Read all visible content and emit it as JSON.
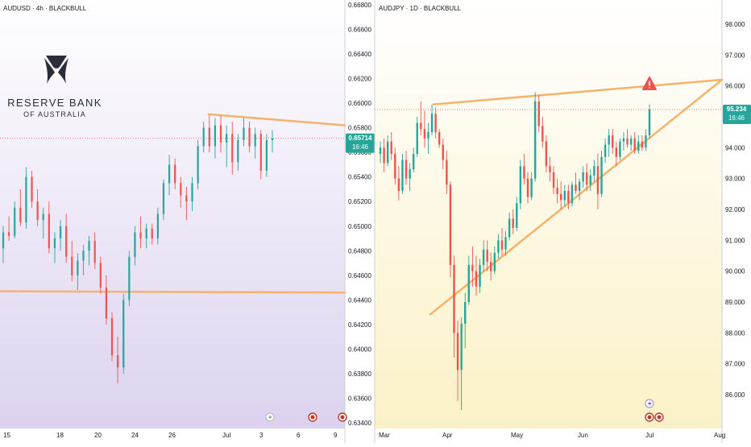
{
  "colors": {
    "up": "#26a69a",
    "down": "#ef5350",
    "trendline": "#f6b26b",
    "price_label_bg": "#26a69a",
    "left_bg_top": "#ffffff",
    "left_bg_bottom": "#dcd2ef",
    "right_bg_top": "#ffffff",
    "right_bg_bottom": "#fbf1c7",
    "alert": "#ef5350"
  },
  "logo": {
    "name": "RESERVE BANK",
    "subname": "OF AUSTRALIA"
  },
  "chart_data": [
    {
      "type": "candlestick",
      "symbol_label": "AUDUSD · 4h · BLACKBULL",
      "ylim": [
        0.633,
        0.668
      ],
      "y_ticks": [
        "0.66800",
        "0.66600",
        "0.66400",
        "0.66200",
        "0.66000",
        "0.65800",
        "0.65600",
        "0.65400",
        "0.65200",
        "0.65000",
        "0.64800",
        "0.64600",
        "0.64400",
        "0.64200",
        "0.64000",
        "0.63800",
        "0.63600",
        "0.63400"
      ],
      "x_ticks": [
        "15",
        "18",
        "20",
        "24",
        "26",
        "Jul",
        "3",
        "6",
        "9"
      ],
      "last_price": {
        "value": "0.65714",
        "countdown": "16:46",
        "numeric": 0.65714
      },
      "candles": [
        {
          "o": 0.6482,
          "h": 0.65,
          "l": 0.647,
          "c": 0.6495
        },
        {
          "o": 0.6495,
          "h": 0.6508,
          "l": 0.6488,
          "c": 0.6492
        },
        {
          "o": 0.6492,
          "h": 0.652,
          "l": 0.649,
          "c": 0.6515
        },
        {
          "o": 0.6515,
          "h": 0.653,
          "l": 0.65,
          "c": 0.6503
        },
        {
          "o": 0.6503,
          "h": 0.6548,
          "l": 0.6498,
          "c": 0.654
        },
        {
          "o": 0.654,
          "h": 0.6545,
          "l": 0.6515,
          "c": 0.652
        },
        {
          "o": 0.652,
          "h": 0.653,
          "l": 0.65,
          "c": 0.6505
        },
        {
          "o": 0.6505,
          "h": 0.6515,
          "l": 0.649,
          "c": 0.651
        },
        {
          "o": 0.651,
          "h": 0.652,
          "l": 0.6478,
          "c": 0.6482
        },
        {
          "o": 0.6482,
          "h": 0.6495,
          "l": 0.647,
          "c": 0.649
        },
        {
          "o": 0.649,
          "h": 0.6505,
          "l": 0.648,
          "c": 0.65
        },
        {
          "o": 0.65,
          "h": 0.651,
          "l": 0.647,
          "c": 0.6475
        },
        {
          "o": 0.6475,
          "h": 0.6488,
          "l": 0.6455,
          "c": 0.646
        },
        {
          "o": 0.646,
          "h": 0.6478,
          "l": 0.6448,
          "c": 0.6472
        },
        {
          "o": 0.6472,
          "h": 0.6485,
          "l": 0.646,
          "c": 0.648
        },
        {
          "o": 0.648,
          "h": 0.6492,
          "l": 0.6468,
          "c": 0.6488
        },
        {
          "o": 0.6488,
          "h": 0.6495,
          "l": 0.6465,
          "c": 0.647
        },
        {
          "o": 0.647,
          "h": 0.6475,
          "l": 0.6445,
          "c": 0.645
        },
        {
          "o": 0.645,
          "h": 0.646,
          "l": 0.642,
          "c": 0.6425
        },
        {
          "o": 0.6425,
          "h": 0.643,
          "l": 0.639,
          "c": 0.6395
        },
        {
          "o": 0.6395,
          "h": 0.641,
          "l": 0.6372,
          "c": 0.6385
        },
        {
          "o": 0.6385,
          "h": 0.6445,
          "l": 0.638,
          "c": 0.644
        },
        {
          "o": 0.644,
          "h": 0.648,
          "l": 0.6435,
          "c": 0.6475
        },
        {
          "o": 0.6475,
          "h": 0.65,
          "l": 0.6468,
          "c": 0.6495
        },
        {
          "o": 0.6495,
          "h": 0.6508,
          "l": 0.6482,
          "c": 0.649
        },
        {
          "o": 0.649,
          "h": 0.6502,
          "l": 0.6482,
          "c": 0.6498
        },
        {
          "o": 0.6498,
          "h": 0.6502,
          "l": 0.6485,
          "c": 0.649
        },
        {
          "o": 0.649,
          "h": 0.6515,
          "l": 0.6485,
          "c": 0.651
        },
        {
          "o": 0.651,
          "h": 0.6538,
          "l": 0.6505,
          "c": 0.6535
        },
        {
          "o": 0.6535,
          "h": 0.6558,
          "l": 0.6525,
          "c": 0.655
        },
        {
          "o": 0.655,
          "h": 0.6555,
          "l": 0.653,
          "c": 0.6535
        },
        {
          "o": 0.6535,
          "h": 0.654,
          "l": 0.6515,
          "c": 0.6525
        },
        {
          "o": 0.6525,
          "h": 0.6532,
          "l": 0.6505,
          "c": 0.652
        },
        {
          "o": 0.652,
          "h": 0.654,
          "l": 0.6512,
          "c": 0.6535
        },
        {
          "o": 0.6535,
          "h": 0.657,
          "l": 0.653,
          "c": 0.6565
        },
        {
          "o": 0.6565,
          "h": 0.6585,
          "l": 0.656,
          "c": 0.658
        },
        {
          "o": 0.658,
          "h": 0.659,
          "l": 0.656,
          "c": 0.6565
        },
        {
          "o": 0.6565,
          "h": 0.6588,
          "l": 0.6555,
          "c": 0.6582
        },
        {
          "o": 0.6582,
          "h": 0.659,
          "l": 0.656,
          "c": 0.6568
        },
        {
          "o": 0.6568,
          "h": 0.6582,
          "l": 0.6548,
          "c": 0.6575
        },
        {
          "o": 0.6575,
          "h": 0.6585,
          "l": 0.6542,
          "c": 0.6552
        },
        {
          "o": 0.6552,
          "h": 0.6575,
          "l": 0.6545,
          "c": 0.657
        },
        {
          "o": 0.657,
          "h": 0.6588,
          "l": 0.6565,
          "c": 0.658
        },
        {
          "o": 0.658,
          "h": 0.6585,
          "l": 0.656,
          "c": 0.6565
        },
        {
          "o": 0.6565,
          "h": 0.658,
          "l": 0.6555,
          "c": 0.6575
        },
        {
          "o": 0.6575,
          "h": 0.6578,
          "l": 0.6538,
          "c": 0.6545
        },
        {
          "o": 0.6545,
          "h": 0.6575,
          "l": 0.654,
          "c": 0.657
        },
        {
          "o": 0.657,
          "h": 0.6578,
          "l": 0.656,
          "c": 0.65714
        }
      ],
      "trendlines": [
        {
          "x0": 0.605,
          "y0": 0.6591,
          "x1": 1.0,
          "y1": 0.6582
        },
        {
          "x0": 0.0,
          "y0": 0.6447,
          "x1": 1.0,
          "y1": 0.6446
        }
      ]
    },
    {
      "type": "candlestick",
      "symbol_label": "AUDJPY · 1D · BLACKBULL",
      "ylim": [
        85.2,
        98.8
      ],
      "y_ticks": [
        "98.000",
        "97.000",
        "96.000",
        "95.000",
        "94.000",
        "93.000",
        "92.000",
        "91.000",
        "90.000",
        "89.000",
        "88.000",
        "87.000",
        "86.000"
      ],
      "x_ticks": [
        "Mar",
        "Apr",
        "May",
        "Jun",
        "Jul",
        "Aug"
      ],
      "last_price": {
        "value": "95.234",
        "countdown": "16:46",
        "numeric": 95.234
      },
      "candles": [
        {
          "o": 93.8,
          "h": 94.2,
          "l": 93.5,
          "c": 94.0
        },
        {
          "o": 94.0,
          "h": 94.3,
          "l": 93.2,
          "c": 93.5
        },
        {
          "o": 93.5,
          "h": 94.4,
          "l": 93.4,
          "c": 94.2
        },
        {
          "o": 94.2,
          "h": 94.5,
          "l": 93.6,
          "c": 93.8
        },
        {
          "o": 93.8,
          "h": 94.0,
          "l": 92.8,
          "c": 93.0
        },
        {
          "o": 93.0,
          "h": 93.4,
          "l": 92.3,
          "c": 92.6
        },
        {
          "o": 92.6,
          "h": 93.8,
          "l": 92.5,
          "c": 93.6
        },
        {
          "o": 93.6,
          "h": 93.9,
          "l": 92.8,
          "c": 93.0
        },
        {
          "o": 93.0,
          "h": 93.5,
          "l": 92.6,
          "c": 93.3
        },
        {
          "o": 93.3,
          "h": 94.0,
          "l": 93.2,
          "c": 93.8
        },
        {
          "o": 93.8,
          "h": 95.0,
          "l": 93.7,
          "c": 94.8
        },
        {
          "o": 94.8,
          "h": 95.5,
          "l": 94.4,
          "c": 94.6
        },
        {
          "o": 94.6,
          "h": 95.2,
          "l": 94.0,
          "c": 94.3
        },
        {
          "o": 94.3,
          "h": 94.8,
          "l": 93.8,
          "c": 94.5
        },
        {
          "o": 94.5,
          "h": 95.4,
          "l": 94.4,
          "c": 95.1
        },
        {
          "o": 95.1,
          "h": 95.3,
          "l": 94.3,
          "c": 94.5
        },
        {
          "o": 94.5,
          "h": 94.6,
          "l": 94.0,
          "c": 94.1
        },
        {
          "o": 94.1,
          "h": 94.3,
          "l": 93.3,
          "c": 93.6
        },
        {
          "o": 93.6,
          "h": 93.9,
          "l": 92.5,
          "c": 92.8
        },
        {
          "o": 92.8,
          "h": 92.9,
          "l": 89.8,
          "c": 90.2
        },
        {
          "o": 90.2,
          "h": 90.5,
          "l": 87.2,
          "c": 88.0
        },
        {
          "o": 88.0,
          "h": 88.4,
          "l": 85.8,
          "c": 86.8
        },
        {
          "o": 86.8,
          "h": 88.5,
          "l": 85.5,
          "c": 88.3
        },
        {
          "o": 88.3,
          "h": 89.3,
          "l": 87.5,
          "c": 89.0
        },
        {
          "o": 89.0,
          "h": 90.5,
          "l": 88.9,
          "c": 90.2
        },
        {
          "o": 90.2,
          "h": 90.8,
          "l": 89.5,
          "c": 90.0
        },
        {
          "o": 90.0,
          "h": 90.5,
          "l": 89.2,
          "c": 89.5
        },
        {
          "o": 89.5,
          "h": 90.4,
          "l": 89.3,
          "c": 90.2
        },
        {
          "o": 90.2,
          "h": 91.0,
          "l": 90.0,
          "c": 90.7
        },
        {
          "o": 90.7,
          "h": 91.0,
          "l": 90.0,
          "c": 90.3
        },
        {
          "o": 90.3,
          "h": 90.6,
          "l": 89.7,
          "c": 90.0
        },
        {
          "o": 90.0,
          "h": 90.8,
          "l": 89.9,
          "c": 90.6
        },
        {
          "o": 90.6,
          "h": 91.2,
          "l": 90.4,
          "c": 91.0
        },
        {
          "o": 91.0,
          "h": 91.4,
          "l": 90.5,
          "c": 90.7
        },
        {
          "o": 90.7,
          "h": 91.3,
          "l": 90.5,
          "c": 91.1
        },
        {
          "o": 91.1,
          "h": 91.9,
          "l": 91.0,
          "c": 91.7
        },
        {
          "o": 91.7,
          "h": 92.0,
          "l": 91.2,
          "c": 91.4
        },
        {
          "o": 91.4,
          "h": 92.4,
          "l": 91.3,
          "c": 92.2
        },
        {
          "o": 92.2,
          "h": 93.6,
          "l": 92.0,
          "c": 93.4
        },
        {
          "o": 93.4,
          "h": 93.8,
          "l": 92.8,
          "c": 93.0
        },
        {
          "o": 93.0,
          "h": 93.2,
          "l": 92.2,
          "c": 92.4
        },
        {
          "o": 92.4,
          "h": 93.2,
          "l": 92.3,
          "c": 93.0
        },
        {
          "o": 93.0,
          "h": 95.8,
          "l": 92.9,
          "c": 95.5
        },
        {
          "o": 95.5,
          "h": 95.7,
          "l": 94.5,
          "c": 94.7
        },
        {
          "o": 94.7,
          "h": 95.0,
          "l": 94.0,
          "c": 94.2
        },
        {
          "o": 94.2,
          "h": 94.4,
          "l": 93.2,
          "c": 93.4
        },
        {
          "o": 93.4,
          "h": 93.7,
          "l": 92.9,
          "c": 93.2
        },
        {
          "o": 93.2,
          "h": 93.4,
          "l": 92.5,
          "c": 92.7
        },
        {
          "o": 92.7,
          "h": 93.0,
          "l": 92.2,
          "c": 92.5
        },
        {
          "o": 92.5,
          "h": 92.9,
          "l": 92.0,
          "c": 92.3
        },
        {
          "o": 92.3,
          "h": 92.8,
          "l": 92.1,
          "c": 92.6
        },
        {
          "o": 92.6,
          "h": 92.8,
          "l": 92.0,
          "c": 92.2
        },
        {
          "o": 92.2,
          "h": 92.9,
          "l": 92.1,
          "c": 92.8
        },
        {
          "o": 92.8,
          "h": 93.2,
          "l": 92.5,
          "c": 92.6
        },
        {
          "o": 92.6,
          "h": 93.0,
          "l": 92.3,
          "c": 92.9
        },
        {
          "o": 92.9,
          "h": 93.4,
          "l": 92.7,
          "c": 93.2
        },
        {
          "o": 93.2,
          "h": 93.5,
          "l": 92.6,
          "c": 92.8
        },
        {
          "o": 92.8,
          "h": 93.3,
          "l": 92.6,
          "c": 93.1
        },
        {
          "o": 93.1,
          "h": 93.6,
          "l": 92.9,
          "c": 93.4
        },
        {
          "o": 93.4,
          "h": 93.8,
          "l": 92.0,
          "c": 92.5
        },
        {
          "o": 92.5,
          "h": 93.9,
          "l": 92.4,
          "c": 93.7
        },
        {
          "o": 93.7,
          "h": 94.3,
          "l": 93.5,
          "c": 94.1
        },
        {
          "o": 94.1,
          "h": 94.6,
          "l": 93.7,
          "c": 94.4
        },
        {
          "o": 94.4,
          "h": 94.6,
          "l": 93.8,
          "c": 94.0
        },
        {
          "o": 94.0,
          "h": 94.2,
          "l": 93.4,
          "c": 93.7
        },
        {
          "o": 93.7,
          "h": 94.3,
          "l": 93.6,
          "c": 94.2
        },
        {
          "o": 94.2,
          "h": 94.5,
          "l": 93.9,
          "c": 94.3
        },
        {
          "o": 94.3,
          "h": 94.6,
          "l": 94.0,
          "c": 94.1
        },
        {
          "o": 94.1,
          "h": 94.4,
          "l": 93.9,
          "c": 94.3
        },
        {
          "o": 94.3,
          "h": 94.5,
          "l": 93.8,
          "c": 93.9
        },
        {
          "o": 93.9,
          "h": 94.4,
          "l": 93.8,
          "c": 94.2
        },
        {
          "o": 94.2,
          "h": 94.4,
          "l": 93.9,
          "c": 94.0
        },
        {
          "o": 94.0,
          "h": 94.6,
          "l": 93.9,
          "c": 94.4
        },
        {
          "o": 94.4,
          "h": 95.4,
          "l": 94.3,
          "c": 95.234
        }
      ],
      "trendlines": [
        {
          "x0": 0.16,
          "y0": 88.6,
          "x1": 1.0,
          "y1": 96.2
        },
        {
          "x0": 0.17,
          "y0": 95.4,
          "x1": 1.0,
          "y1": 96.2
        }
      ],
      "hline": 95.234
    }
  ]
}
